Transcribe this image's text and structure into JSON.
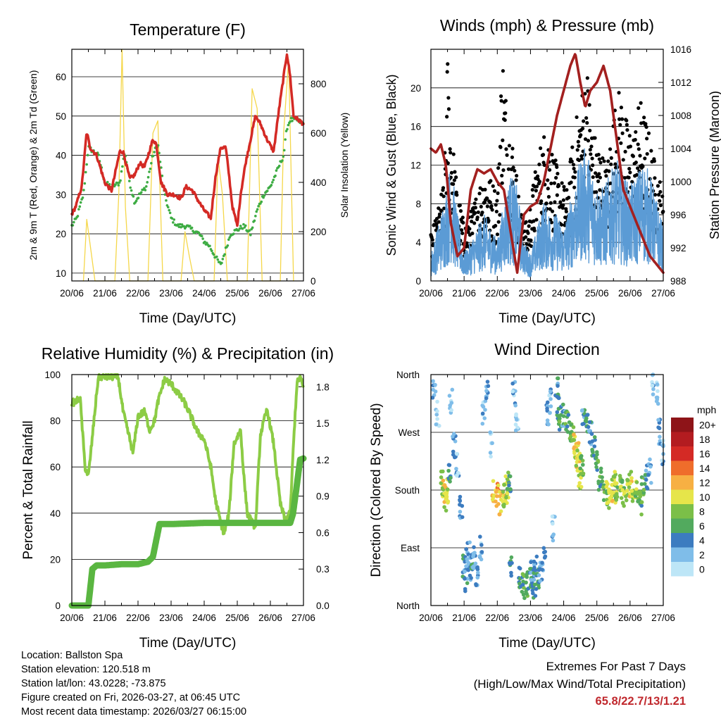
{
  "chart_data": [
    {
      "type": "line",
      "title": "Temperature (F)",
      "xlabel": "Time (Day/UTC)",
      "ylabel": "2m & 9m T (Red, Orange) & 2m Td (Green)",
      "y2label": "Solar Insolation (Yellow)",
      "x_ticks": [
        "20/06",
        "21/06",
        "22/06",
        "23/06",
        "24/06",
        "25/06",
        "26/06",
        "27/06"
      ],
      "xlim": [
        0,
        7
      ],
      "ylim": [
        8,
        67
      ],
      "y_ticks": [
        10,
        20,
        30,
        40,
        50,
        60
      ],
      "y2lim": [
        0,
        940
      ],
      "y2_ticks": [
        0,
        200,
        400,
        600,
        800
      ],
      "series": [
        {
          "name": "2m T",
          "color": "#d42a25",
          "x": [
            0,
            0.12,
            0.3,
            0.45,
            0.55,
            0.75,
            1.0,
            1.2,
            1.45,
            1.55,
            1.75,
            1.9,
            2.05,
            2.2,
            2.45,
            2.55,
            2.7,
            2.9,
            3.1,
            3.3,
            3.45,
            3.65,
            3.85,
            4.0,
            4.2,
            4.35,
            4.5,
            4.65,
            4.75,
            4.85,
            5.0,
            5.1,
            5.25,
            5.45,
            5.55,
            5.7,
            5.9,
            6.1,
            6.25,
            6.4,
            6.5,
            6.6,
            6.7,
            6.85,
            7.0
          ],
          "values": [
            25,
            27,
            32,
            46,
            42,
            40,
            33,
            31,
            41,
            41,
            34,
            35,
            38,
            37,
            44,
            43,
            33,
            30,
            30,
            29,
            32,
            31,
            28,
            26,
            24,
            35,
            42,
            42,
            35,
            27,
            22,
            30,
            38,
            46,
            50,
            48,
            44,
            41,
            51,
            60,
            66,
            60,
            50,
            49,
            48
          ]
        },
        {
          "name": "2m Td",
          "color": "#3dac43",
          "x": [
            0,
            0.15,
            0.35,
            0.5,
            0.65,
            0.8,
            1.0,
            1.2,
            1.45,
            1.6,
            1.75,
            1.9,
            2.05,
            2.25,
            2.45,
            2.6,
            2.8,
            3.0,
            3.2,
            3.45,
            3.65,
            3.85,
            4.0,
            4.15,
            4.35,
            4.5,
            4.65,
            4.8,
            5.0,
            5.2,
            5.4,
            5.6,
            5.8,
            6.0,
            6.2,
            6.4,
            6.5,
            6.6,
            6.8,
            7.0
          ],
          "values": [
            22,
            24,
            30,
            42,
            41,
            40,
            33,
            32,
            33,
            41,
            33,
            28,
            30,
            32,
            40,
            43,
            30,
            24,
            22,
            22,
            21,
            20,
            18,
            17,
            14,
            12,
            16,
            20,
            21,
            22,
            20,
            26,
            30,
            32,
            36,
            40,
            47,
            49,
            49,
            48
          ]
        },
        {
          "name": "Solar Insolation",
          "axis": "y2",
          "color": "#f5d74a",
          "x": [
            0.35,
            0.45,
            0.55,
            0.7,
            1.3,
            1.42,
            1.52,
            1.62,
            1.75,
            2.3,
            2.45,
            2.6,
            2.75,
            3.3,
            3.42,
            3.55,
            3.7,
            4.3,
            4.42,
            4.55,
            4.7,
            5.3,
            5.45,
            5.6,
            5.75,
            6.3,
            6.4,
            6.55,
            6.7
          ],
          "values": [
            0,
            250,
            150,
            0,
            0,
            350,
            940,
            300,
            0,
            0,
            600,
            650,
            0,
            0,
            200,
            100,
            0,
            0,
            500,
            350,
            0,
            0,
            780,
            700,
            0,
            0,
            600,
            900,
            0
          ]
        }
      ]
    },
    {
      "type": "scatter",
      "title": "Winds (mph) & Pressure (mb)",
      "xlabel": "Time (Day/UTC)",
      "ylabel": "Sonic Wind & Gust (Blue, Black)",
      "y2label": "Station Pressure (Maroon)",
      "x_ticks": [
        "20/06",
        "21/06",
        "22/06",
        "23/06",
        "24/06",
        "25/06",
        "26/06",
        "27/06"
      ],
      "xlim": [
        0,
        7
      ],
      "ylim": [
        0,
        24
      ],
      "y_ticks": [
        0,
        4,
        8,
        12,
        16,
        20
      ],
      "y2lim": [
        988,
        1016
      ],
      "y2_ticks": [
        988,
        992,
        996,
        1000,
        1004,
        1008,
        1012,
        1016
      ],
      "series": [
        {
          "name": "Station Pressure",
          "axis": "y2",
          "color": "#a3201f",
          "x": [
            0,
            0.15,
            0.3,
            0.45,
            0.6,
            0.8,
            1.0,
            1.2,
            1.4,
            1.6,
            1.8,
            2.0,
            2.2,
            2.4,
            2.6,
            2.8,
            3.0,
            3.2,
            3.4,
            3.6,
            3.8,
            4.0,
            4.2,
            4.35,
            4.5,
            4.65,
            4.8,
            5.0,
            5.2,
            5.4,
            5.6,
            5.8,
            6.0,
            6.2,
            6.4,
            6.6,
            6.8,
            7.0
          ],
          "values": [
            1004,
            1003.5,
            1004.5,
            1002,
            995,
            991,
            992,
            999,
            1001.5,
            1001,
            1001.5,
            1000,
            999,
            994,
            989,
            996,
            997,
            997.5,
            1000,
            1004,
            1008,
            1011,
            1014,
            1015.5,
            1012,
            1009,
            1011,
            1012,
            1014,
            1011,
            1005,
            999,
            997,
            995,
            993,
            991,
            990,
            989
          ]
        },
        {
          "name": "Sonic Wind",
          "color": "#5b9bd5",
          "x": [
            0,
            0.2,
            0.4,
            0.6,
            0.8,
            1.0,
            1.2,
            1.4,
            1.6,
            1.8,
            2.0,
            2.2,
            2.4,
            2.6,
            2.8,
            3.0,
            3.2,
            3.4,
            3.6,
            3.8,
            4.0,
            4.2,
            4.4,
            4.6,
            4.8,
            5.0,
            5.2,
            5.4,
            5.6,
            5.8,
            6.0,
            6.2,
            6.4,
            6.6,
            6.8,
            7.0
          ],
          "values": [
            2,
            4,
            6,
            9,
            5,
            2,
            3,
            4,
            5,
            4,
            3,
            6,
            8,
            7,
            3,
            2,
            4,
            6,
            5,
            5,
            4,
            6,
            8,
            10,
            9,
            7,
            7,
            8,
            9,
            8,
            7,
            8,
            9,
            8,
            6,
            4
          ]
        },
        {
          "name": "Gust",
          "color": "#000000",
          "x": [
            0,
            0.2,
            0.4,
            0.5,
            0.6,
            0.8,
            1.0,
            1.2,
            1.4,
            1.6,
            1.8,
            2.0,
            2.15,
            2.3,
            2.5,
            2.7,
            2.9,
            3.1,
            3.3,
            3.5,
            3.7,
            3.9,
            4.1,
            4.3,
            4.5,
            4.7,
            4.9,
            5.1,
            5.3,
            5.5,
            5.7,
            5.9,
            6.1,
            6.3,
            6.5,
            6.7,
            6.9,
            7.0
          ],
          "values": [
            4,
            6,
            9,
            20,
            14,
            8,
            5,
            6,
            8,
            10,
            9,
            8,
            21,
            15,
            12,
            6,
            5,
            9,
            12,
            14,
            11,
            9,
            8,
            13,
            16,
            19,
            13,
            12,
            10,
            15,
            17,
            14,
            13,
            16,
            14,
            11,
            9,
            7
          ]
        }
      ]
    },
    {
      "type": "line",
      "title": "Relative Humidity (%) & Precipitation (in)",
      "xlabel": "Time (Day/UTC)",
      "ylabel": "Percent & Total Rainfall",
      "x_ticks": [
        "20/06",
        "21/06",
        "22/06",
        "23/06",
        "24/06",
        "25/06",
        "26/06",
        "27/06"
      ],
      "xlim": [
        0,
        7
      ],
      "ylim": [
        0,
        100
      ],
      "y_ticks": [
        0,
        20,
        40,
        60,
        80,
        100
      ],
      "y2lim": [
        0,
        1.9
      ],
      "y2_ticks": [
        "0.0",
        "0.3",
        "0.6",
        "0.9",
        "1.2",
        "1.5",
        "1.8"
      ],
      "series": [
        {
          "name": "Relative Humidity",
          "color": "#8ccc45",
          "x": [
            0,
            0.1,
            0.25,
            0.4,
            0.5,
            0.6,
            0.8,
            1.0,
            1.2,
            1.4,
            1.55,
            1.75,
            1.85,
            2.0,
            2.2,
            2.35,
            2.5,
            2.6,
            2.8,
            3.0,
            3.2,
            3.4,
            3.6,
            3.8,
            4.0,
            4.2,
            4.35,
            4.5,
            4.6,
            4.75,
            4.9,
            5.1,
            5.2,
            5.3,
            5.45,
            5.55,
            5.7,
            5.9,
            6.1,
            6.3,
            6.45,
            6.6,
            6.7,
            6.8,
            6.9,
            7.0
          ],
          "values": [
            88,
            88,
            90,
            60,
            56,
            70,
            99,
            99,
            99,
            99,
            84,
            72,
            66,
            82,
            84,
            76,
            80,
            88,
            98,
            96,
            92,
            88,
            82,
            75,
            72,
            60,
            45,
            36,
            31,
            40,
            70,
            76,
            56,
            40,
            36,
            34,
            74,
            85,
            70,
            44,
            37,
            40,
            70,
            96,
            99,
            94
          ]
        },
        {
          "name": "Total Rainfall",
          "axis": "y2",
          "color": "#5ab641",
          "x": [
            0,
            0.5,
            0.62,
            0.75,
            1.0,
            1.5,
            2.0,
            2.3,
            2.45,
            2.65,
            3.0,
            4.0,
            5.0,
            6.0,
            6.6,
            6.68,
            6.78,
            6.9,
            7.0
          ],
          "values": [
            0,
            0,
            0.3,
            0.33,
            0.33,
            0.34,
            0.34,
            0.36,
            0.4,
            0.67,
            0.67,
            0.68,
            0.68,
            0.68,
            0.68,
            0.75,
            0.95,
            1.2,
            1.21
          ]
        }
      ]
    },
    {
      "type": "scatter",
      "title": "Wind Direction",
      "xlabel": "Time (Day/UTC)",
      "ylabel": "Direction (Colored By Speed)",
      "x_ticks": [
        "20/06",
        "21/06",
        "22/06",
        "23/06",
        "24/06",
        "25/06",
        "26/06",
        "27/06"
      ],
      "xlim": [
        0,
        7
      ],
      "ylim": [
        0,
        360
      ],
      "y_ticks": [
        {
          "value": 0,
          "label": "North"
        },
        {
          "value": 90,
          "label": "East"
        },
        {
          "value": 180,
          "label": "South"
        },
        {
          "value": 270,
          "label": "West"
        },
        {
          "value": 360,
          "label": "North"
        }
      ],
      "legend_title": "mph",
      "legend": [
        "0",
        "2",
        "4",
        "6",
        "8",
        "10",
        "12",
        "14",
        "16",
        "18",
        "20+"
      ],
      "legend_colors": [
        "#bde6f7",
        "#7fbde9",
        "#3c7cc0",
        "#52aa5e",
        "#7bbf48",
        "#e6e54a",
        "#f7b043",
        "#ef6d2b",
        "#d42a25",
        "#b31c20",
        "#8e1418"
      ],
      "series": [
        {
          "name": "Direction",
          "x": [
            0.1,
            0.2,
            0.35,
            0.4,
            0.45,
            0.5,
            0.55,
            0.6,
            0.7,
            0.8,
            0.9,
            1.0,
            1.05,
            1.1,
            1.15,
            1.2,
            1.25,
            1.3,
            1.4,
            1.5,
            1.6,
            1.7,
            1.8,
            1.9,
            2.0,
            2.1,
            2.2,
            2.25,
            2.3,
            2.35,
            2.4,
            2.5,
            2.6,
            2.7,
            2.8,
            2.9,
            3.0,
            3.05,
            3.1,
            3.15,
            3.2,
            3.3,
            3.4,
            3.5,
            3.6,
            3.7,
            3.8,
            3.85,
            3.9,
            4.0,
            4.1,
            4.2,
            4.3,
            4.35,
            4.4,
            4.45,
            4.5,
            4.55,
            4.6,
            4.7,
            4.8,
            4.9,
            5.0,
            5.1,
            5.2,
            5.3,
            5.4,
            5.5,
            5.55,
            5.6,
            5.7,
            5.8,
            5.9,
            6.0,
            6.1,
            6.2,
            6.3,
            6.4,
            6.5,
            6.6,
            6.7,
            6.8,
            6.9,
            7.0
          ],
          "values": [
            340,
            300,
            190,
            175,
            165,
            180,
            200,
            320,
            250,
            220,
            150,
            60,
            40,
            70,
            80,
            50,
            75,
            65,
            40,
            90,
            300,
            330,
            250,
            180,
            175,
            160,
            170,
            175,
            185,
            190,
            60,
            330,
            280,
            40,
            30,
            35,
            45,
            55,
            30,
            60,
            40,
            50,
            70,
            300,
            320,
            120,
            340,
            310,
            290,
            295,
            285,
            270,
            260,
            250,
            230,
            240,
            200,
            215,
            300,
            290,
            270,
            250,
            220,
            195,
            180,
            175,
            170,
            180,
            190,
            175,
            185,
            175,
            180,
            190,
            170,
            175,
            160,
            180,
            200,
            210,
            340,
            330,
            270,
            240
          ],
          "speed": [
            2,
            1,
            9,
            11,
            10,
            9,
            4,
            2,
            3,
            2,
            3,
            5,
            4,
            4,
            3,
            4,
            4,
            3,
            3,
            2,
            2,
            3,
            1,
            10,
            12,
            11,
            9,
            10,
            8,
            6,
            5,
            2,
            1,
            5,
            6,
            6,
            5,
            4,
            5,
            4,
            5,
            3,
            3,
            3,
            2,
            2,
            4,
            5,
            6,
            4,
            6,
            7,
            9,
            11,
            10,
            11,
            9,
            7,
            4,
            5,
            4,
            5,
            6,
            6,
            7,
            8,
            9,
            10,
            9,
            8,
            9,
            8,
            9,
            10,
            9,
            8,
            6,
            7,
            4,
            3,
            2,
            2,
            3,
            2
          ]
        }
      ]
    }
  ],
  "info": {
    "location": "Location: Ballston Spa",
    "elevation": "Station elevation: 120.518 m",
    "latlon": "Station lat/lon: 43.0228; -73.875",
    "created": "Figure created on Fri, 2026-03-27, at 06:45 UTC",
    "recent": "Most recent data timestamp: 2026/03/27 06:15:00"
  },
  "extremes": {
    "title": "Extremes For Past 7 Days",
    "subtitle": "(High/Low/Max Wind/Total Precipitation)",
    "values": "65.8/22.7/13/1.21"
  }
}
